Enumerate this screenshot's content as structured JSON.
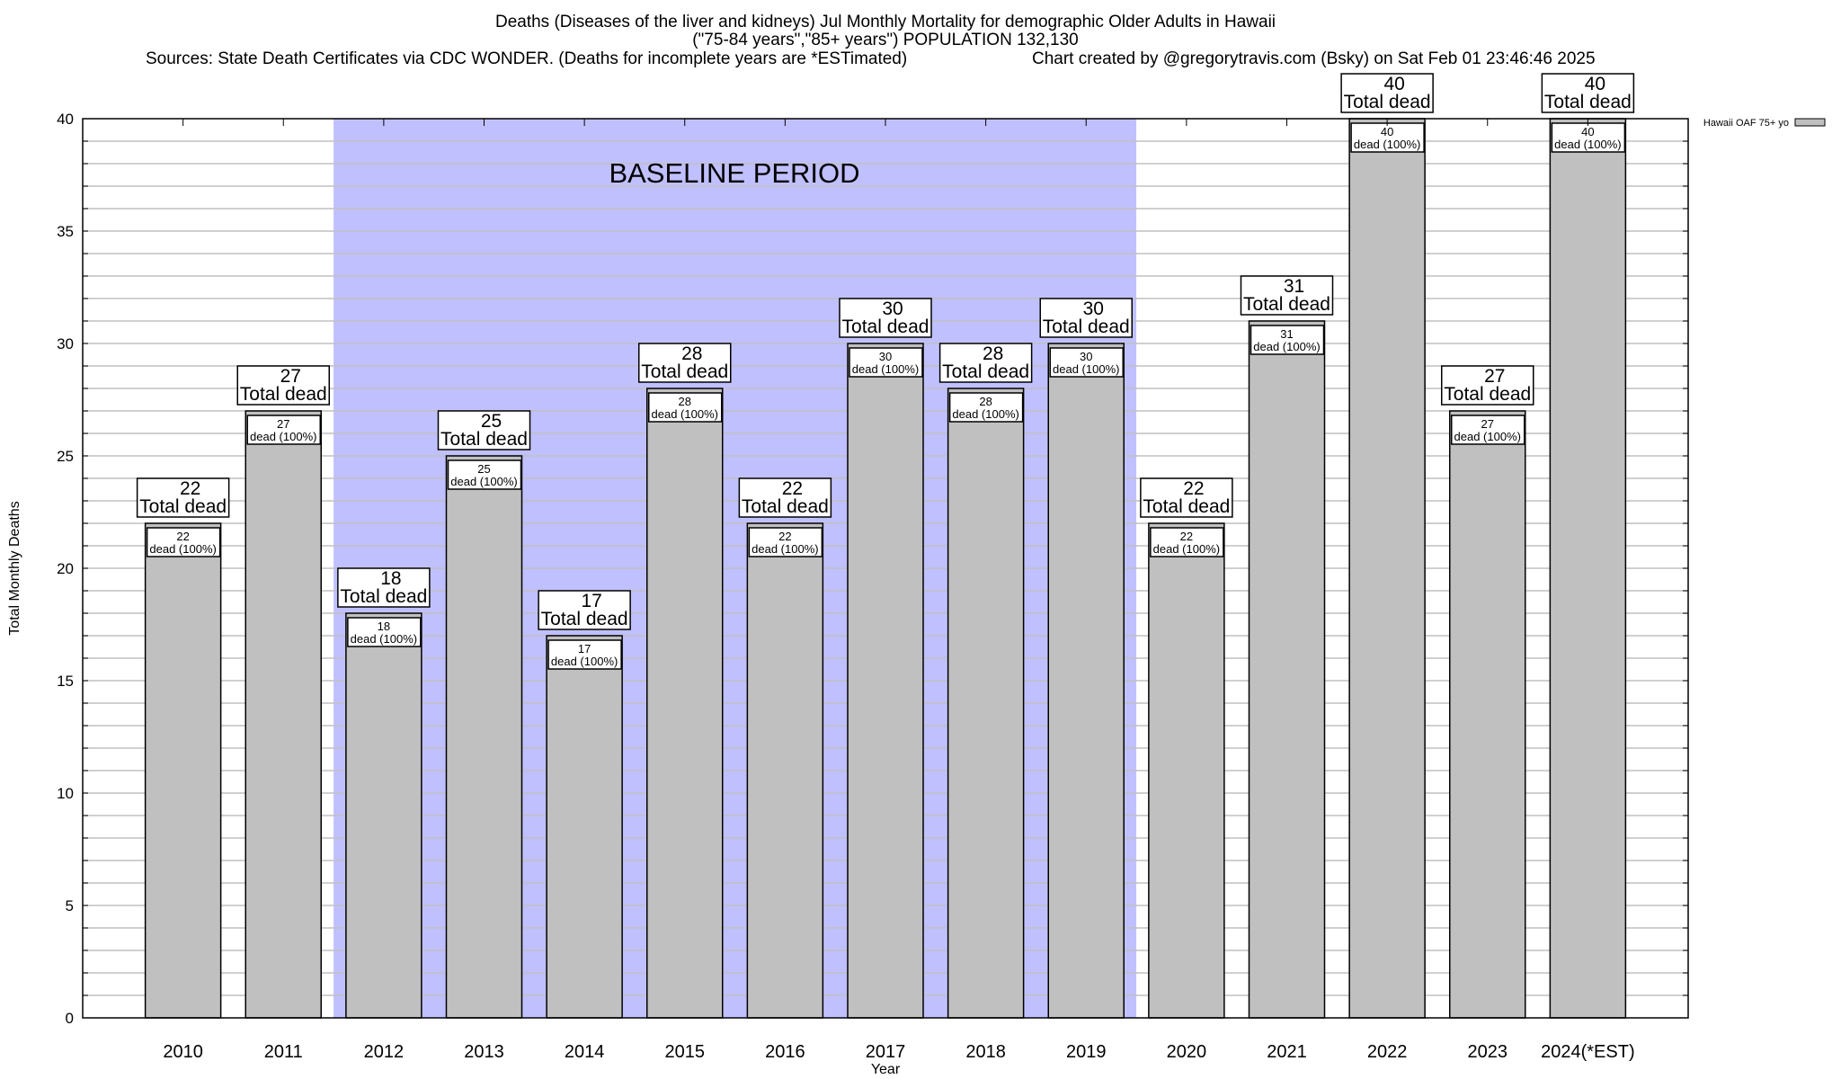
{
  "chart_data": {
    "type": "bar",
    "title_lines": [
      "Deaths (Diseases of the liver and kidneys) Jul Monthly Mortality for demographic Older Adults in Hawaii",
      "(\"75-84 years\",\"85+ years\") POPULATION 132,130"
    ],
    "source_note": "Sources: State Death Certificates via CDC WONDER. (Deaths for incomplete years are *ESTimated)",
    "credit_note": "Chart created by @gregorytravis.com (Bsky) on Sat Feb 01 23:46:46 2025",
    "xlabel": "Year",
    "ylabel": "Total Monthly Deaths",
    "ylim": [
      0,
      40
    ],
    "yticks": [
      "0",
      "5",
      "10",
      "15",
      "20",
      "25",
      "30",
      "35",
      "40"
    ],
    "grid": "horizontal, every 1",
    "categories": [
      "2010",
      "2011",
      "2012",
      "2013",
      "2014",
      "2015",
      "2016",
      "2017",
      "2018",
      "2019",
      "2020",
      "2021",
      "2022",
      "2023",
      "2024(*EST)"
    ],
    "series": [
      {
        "name": "Hawaii OAF 75+ yo",
        "values": [
          22,
          27,
          18,
          25,
          17,
          28,
          22,
          30,
          28,
          30,
          22,
          31,
          40,
          27,
          40
        ]
      }
    ],
    "total_label_suffix": "Total dead",
    "inner_label_suffix": "dead (100%)",
    "legend_position": "top-right",
    "annotation": {
      "text": "BASELINE PERIOD",
      "from_category": "2012",
      "to_category": "2019"
    },
    "colors": {
      "bar": "#c0c0c0",
      "baseline_shade": "#c0c0ff",
      "grid": "#c0c0c0"
    }
  }
}
